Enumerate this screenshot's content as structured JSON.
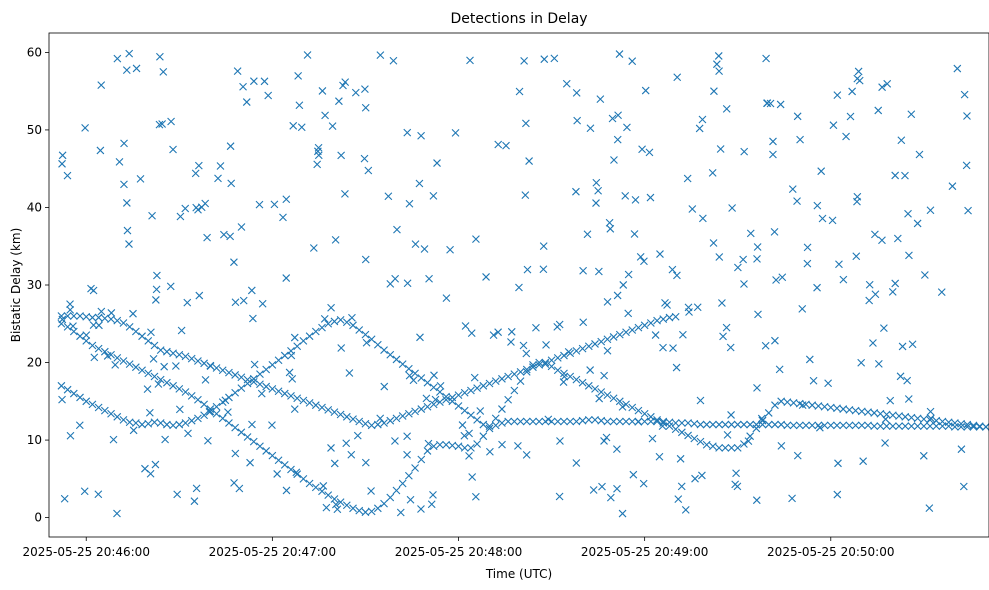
{
  "chart_data": {
    "type": "scatter",
    "title": "Detections in Delay",
    "xlabel": "Time (UTC)",
    "ylabel": "Bistatic Delay (km)",
    "x_axis": "time",
    "xlim": [
      "2025-05-25 20:45:48",
      "2025-05-25 20:50:51"
    ],
    "ylim": [
      -2.5,
      62.5
    ],
    "xticks": [
      "2025-05-25 20:46:00",
      "2025-05-25 20:47:00",
      "2025-05-25 20:48:00",
      "2025-05-25 20:49:00",
      "2025-05-25 20:50:00"
    ],
    "yticks": [
      "0",
      "10",
      "20",
      "30",
      "40",
      "50",
      "60"
    ],
    "marker": "x",
    "color": "#1f77b4",
    "grid": false,
    "legend": "none",
    "track_start": "2025-05-25 20:45:52",
    "track_step_seconds": 2,
    "tracks": [
      {
        "y": [
          17.0,
          16.5,
          16.0,
          15.5,
          15.0,
          14.6,
          14.2,
          13.8,
          13.4,
          13.0,
          12.6,
          12.3,
          12.2,
          12.0,
          12.1,
          12.3,
          12.2,
          12.0,
          11.9,
          12.0,
          12.2,
          12.5,
          12.8,
          13.2,
          13.7,
          14.3,
          14.9,
          15.5,
          16.1,
          16.7,
          17.3,
          17.9,
          18.5,
          19.1,
          19.7,
          20.3,
          20.9,
          21.5,
          22.1,
          22.8,
          23.4,
          24.0,
          24.5,
          25.0,
          25.3,
          25.5,
          25.2,
          24.8,
          24.2,
          23.6,
          23.0,
          22.3,
          21.6,
          21.0,
          20.4,
          19.8,
          19.2,
          18.6,
          18.0,
          17.4,
          16.8,
          16.2,
          15.6,
          15.0,
          14.4,
          13.8,
          13.2,
          12.6,
          12.0,
          11.8,
          11.9,
          12.2,
          12.4,
          12.4,
          12.4,
          12.4,
          12.4,
          12.4,
          12.4,
          12.4,
          12.4,
          12.4,
          12.4,
          12.4,
          12.5,
          12.6,
          12.6,
          12.5,
          12.4,
          12.4,
          12.4,
          12.4,
          12.4,
          12.4,
          12.4,
          12.4,
          12.4,
          12.4,
          12.3,
          12.2,
          12.2,
          12.2,
          12.1,
          12.0,
          12.0,
          12.0,
          12.0,
          12.0,
          12.0,
          12.0,
          12.0,
          12.0,
          12.0,
          12.0,
          12.0,
          12.0,
          12.0,
          11.9,
          11.9,
          11.9,
          11.9,
          11.9,
          11.9,
          11.9,
          11.9,
          11.9,
          11.9,
          11.9,
          11.9,
          11.9,
          11.9,
          11.8,
          11.8,
          11.8,
          11.8,
          11.8,
          11.8,
          11.8,
          11.8,
          11.8,
          11.8,
          11.8,
          11.8,
          11.8,
          11.7,
          11.7,
          11.7,
          11.7,
          11.7,
          11.7,
          11.7
        ]
      },
      {
        "y": [
          25.0,
          24.6,
          24.0,
          23.4,
          22.8,
          22.2,
          21.8,
          21.4,
          21.0,
          20.6,
          20.2,
          19.8,
          19.4,
          19.0,
          18.6,
          18.2,
          17.8,
          17.4,
          17.0,
          16.6,
          16.2,
          15.7,
          15.2,
          14.6,
          14.0,
          13.4,
          12.8,
          12.2,
          11.6,
          11.0,
          10.4,
          9.8,
          9.2,
          8.6,
          8.0,
          7.4,
          6.8,
          6.2,
          5.6,
          5.0,
          4.4,
          3.9,
          3.4,
          2.9,
          2.4,
          2.0,
          1.6,
          1.2,
          0.9,
          0.7,
          0.8,
          1.2,
          1.8,
          2.6,
          3.5,
          4.4,
          5.4,
          6.4,
          7.5,
          8.6,
          9.2,
          9.4,
          9.4,
          9.3,
          9.2,
          9.0,
          9.0,
          9.5,
          10.5,
          11.5,
          12.8,
          14.0,
          15.2,
          16.4,
          17.6,
          18.8,
          19.7,
          20.0,
          19.8,
          19.5,
          19.0,
          18.6,
          18.2,
          17.8,
          17.4,
          17.0,
          16.6,
          16.2,
          15.8,
          15.4,
          15.0,
          14.6,
          14.2,
          13.8,
          13.4,
          13.0,
          12.6,
          12.2,
          11.8,
          11.4,
          11.0,
          10.6,
          10.2,
          9.8,
          9.4,
          9.2,
          9.0,
          9.0,
          9.0,
          9.0,
          9.5,
          10.5,
          11.5,
          12.5,
          13.5,
          14.5,
          15.0,
          14.9,
          14.8,
          14.7,
          14.6,
          14.5,
          14.4,
          14.3,
          14.2,
          14.1,
          14.0,
          13.9,
          13.8,
          13.7,
          13.6,
          13.5,
          13.4,
          13.3,
          13.2,
          13.1,
          13.0,
          12.9,
          12.8,
          12.7,
          12.6,
          12.5,
          12.4,
          12.3,
          12.2,
          12.1,
          12.0,
          11.9,
          11.8,
          11.7,
          11.6
        ]
      },
      {
        "y": [
          26.0,
          26.0,
          26.0,
          26.0,
          25.9,
          25.8,
          25.8,
          25.7,
          25.6,
          25.4,
          25.1,
          24.6,
          24.0,
          23.4,
          22.8,
          22.2,
          21.6,
          21.4,
          21.2,
          21.0,
          20.8,
          20.5,
          20.2,
          19.9,
          19.6,
          19.3,
          19.0,
          18.7,
          18.4,
          18.1,
          17.8,
          17.5,
          17.2,
          16.9,
          16.6,
          16.3,
          16.0,
          15.7,
          15.4,
          15.1,
          14.8,
          14.5,
          14.2,
          13.9,
          13.6,
          13.3,
          13.0,
          12.7,
          12.4,
          12.1,
          11.9,
          12.0,
          12.2,
          12.5,
          12.8,
          13.1,
          13.4,
          13.7,
          14.0,
          14.3,
          14.6,
          14.9,
          15.2,
          15.5,
          15.8,
          16.1,
          16.4,
          16.7,
          17.0,
          17.3,
          17.6,
          17.9,
          18.2,
          18.5,
          18.8,
          19.1,
          19.4,
          19.7,
          20.0,
          20.3,
          20.6,
          20.9,
          21.2,
          21.5,
          21.8,
          22.1,
          22.4,
          22.7,
          23.0,
          23.3,
          23.6,
          23.9,
          24.2,
          24.5,
          24.8,
          25.1,
          25.4,
          25.6,
          25.8,
          25.9
        ]
      }
    ],
    "clutter": {
      "count": 460,
      "seed": 7,
      "ylim": [
        0.5,
        60
      ]
    }
  }
}
